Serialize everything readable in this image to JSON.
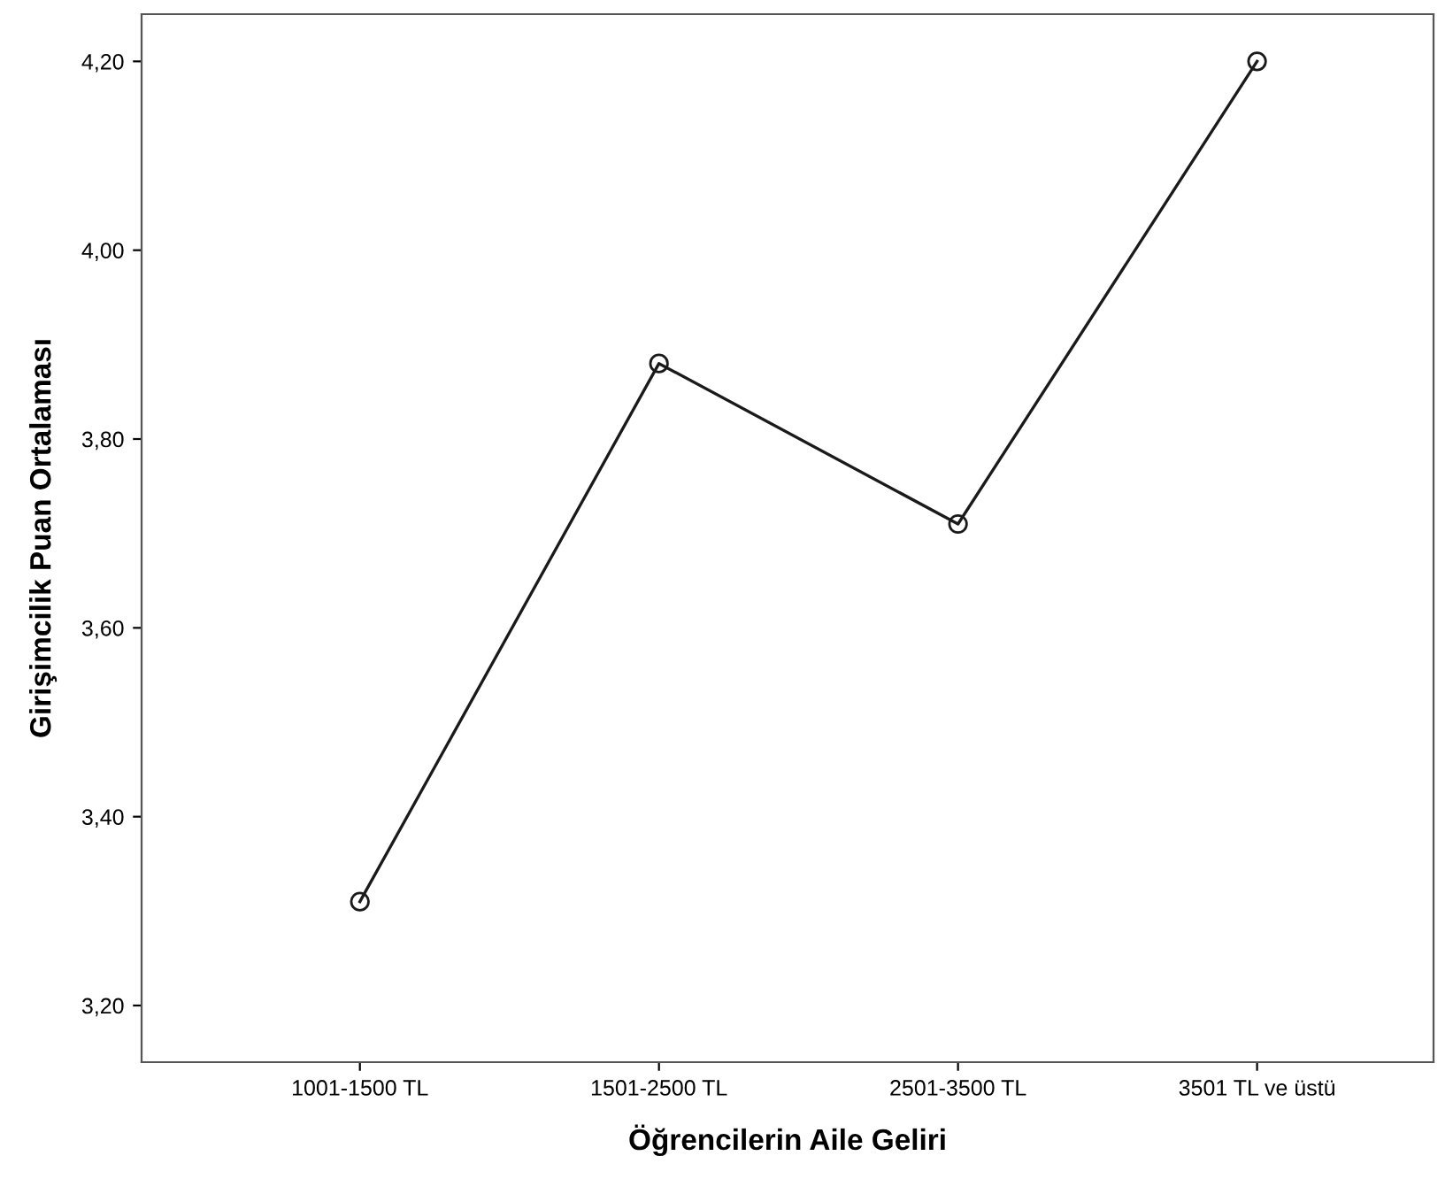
{
  "chart_data": {
    "type": "line",
    "xlabel": "Öğrencilerin Aile Geliri",
    "ylabel": "Girişimcilik Puan Ortalaması",
    "categories": [
      "1001-1500 TL",
      "1501-2500 TL",
      "2501-3500 TL",
      "3501 TL ve üstü"
    ],
    "series": [
      {
        "color": "#1a1a1a",
        "values": [
          3.31,
          3.88,
          3.71,
          4.2
        ]
      }
    ],
    "ylim": [
      3.14,
      4.25
    ],
    "yticks": [
      {
        "value": 3.2,
        "label": "3,20"
      },
      {
        "value": 3.4,
        "label": "3,40"
      },
      {
        "value": 3.6,
        "label": "3,60"
      },
      {
        "value": 3.8,
        "label": "3,80"
      },
      {
        "value": 4.0,
        "label": "4,00"
      },
      {
        "value": 4.2,
        "label": "4,20"
      }
    ],
    "grid": false,
    "marker": "circle",
    "line_style": "solid"
  }
}
